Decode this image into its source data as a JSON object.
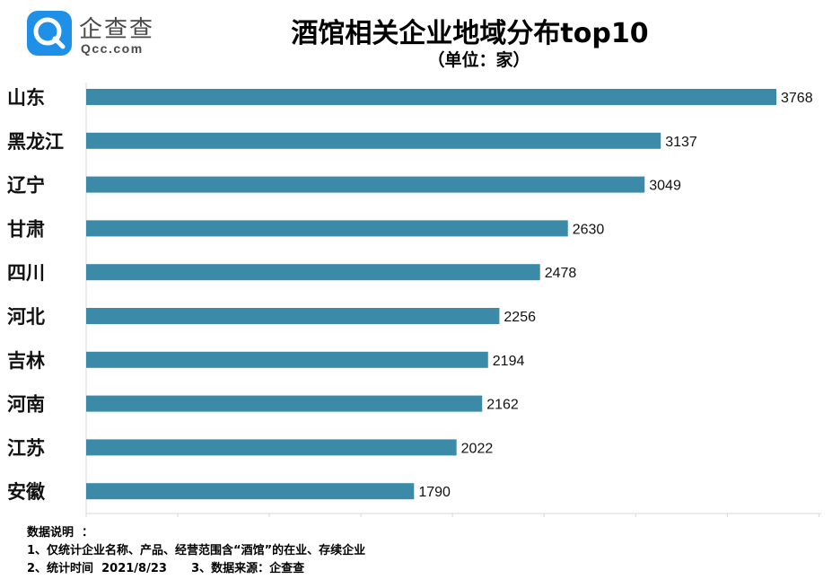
{
  "logo": {
    "name": "企查查",
    "domain": "Qcc.com"
  },
  "colors": {
    "bar": "#3a8aa8",
    "logo": "#1e90e8"
  },
  "chart_data": {
    "type": "bar",
    "orientation": "horizontal",
    "title": "酒馆相关企业地域分布top10",
    "subtitle": "（单位：家）",
    "categories": [
      "山东",
      "黑龙江",
      "辽宁",
      "甘肃",
      "四川",
      "河北",
      "吉林",
      "河南",
      "江苏",
      "安徽"
    ],
    "values": [
      3768,
      3137,
      3049,
      2630,
      2478,
      2256,
      2194,
      2162,
      2022,
      1790
    ],
    "xlim": [
      0,
      4000
    ],
    "grid": false,
    "legend": "none"
  },
  "notes": {
    "heading": "数据说明  ：",
    "line1": "1、仅统计企业名称、产品、经营范围含“酒馆”的在业、存续企业",
    "line2": "2、统计时间  2021/8/23      3、数据来源：企查查"
  }
}
